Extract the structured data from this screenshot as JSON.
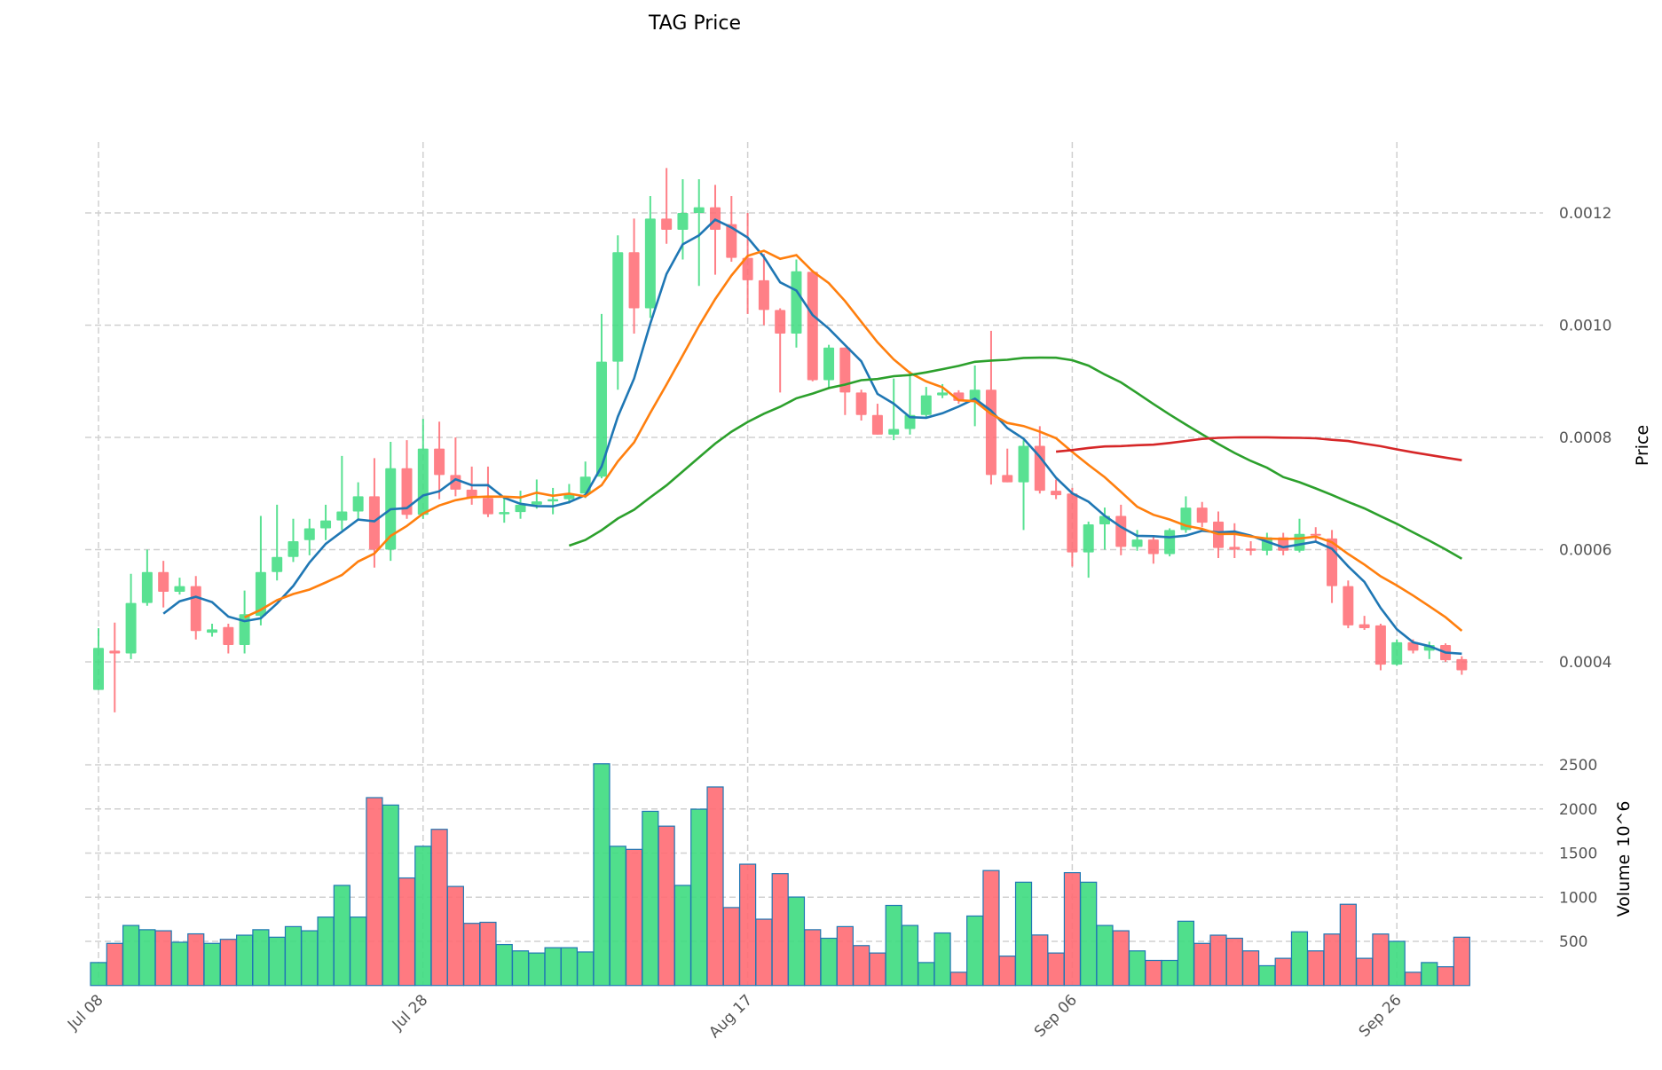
{
  "chart_data": {
    "type": "candlestick",
    "title": "TAG Price",
    "start_date": "2024-07-08",
    "price": {
      "ylabel": "Price",
      "ylim": [
        0.00026,
        0.001327
      ],
      "yticks": [
        0.0004,
        0.0006,
        0.0008,
        0.001,
        0.0012
      ],
      "ytick_labels": [
        "0.0004",
        "0.0006",
        "0.0008",
        "0.0010",
        "0.0012"
      ]
    },
    "volume": {
      "ylabel": "Volume",
      "yunit": "10^6",
      "ylim": [
        0,
        2620
      ],
      "yticks": [
        500,
        1000,
        1500,
        2000,
        2500
      ],
      "ytick_labels": [
        "500",
        "1000",
        "1500",
        "2000",
        "2500"
      ]
    },
    "xtick_indices": [
      0,
      20,
      40,
      60,
      80
    ],
    "xtick_labels": [
      "Jul 08",
      "Jul 28",
      "Aug 17",
      "Sep 06",
      "Sep 26"
    ],
    "moving_averages": [
      {
        "window": 5,
        "color": "#1f77b4"
      },
      {
        "window": 10,
        "color": "#ff7f0e"
      },
      {
        "window": 30,
        "color": "#2ca02c"
      },
      {
        "window": 60,
        "color": "#d62728"
      }
    ],
    "up_color": "#3ddc7f",
    "down_color": "#ff6b73",
    "volume_edge_color": "#1f77b4",
    "open": [
      0.00035,
      0.00042,
      0.000415,
      0.000505,
      0.00056,
      0.000525,
      0.000535,
      0.000452,
      0.000462,
      0.00043,
      0.000482,
      0.00056,
      0.000587,
      0.000617,
      0.000638,
      0.000652,
      0.000668,
      0.000695,
      0.0006,
      0.000745,
      0.000662,
      0.00078,
      0.000733,
      0.000707,
      0.000692,
      0.000663,
      0.000667,
      0.00068,
      0.000686,
      0.00069,
      0.0007,
      0.00073,
      0.000935,
      0.00113,
      0.00103,
      0.00119,
      0.00117,
      0.0012,
      0.00121,
      0.00118,
      0.00112,
      0.00108,
      0.001027,
      0.000985,
      0.001095,
      0.000902,
      0.00096,
      0.00088,
      0.00084,
      0.000805,
      0.000815,
      0.00084,
      0.000875,
      0.00088,
      0.000865,
      0.000885,
      0.000733,
      0.00072,
      0.000785,
      0.000705,
      0.0007,
      0.000595,
      0.000645,
      0.00066,
      0.000605,
      0.000618,
      0.000592,
      0.000635,
      0.000675,
      0.00065,
      0.000605,
      0.000602,
      0.000598,
      0.000622,
      0.000598,
      0.000628,
      0.00062,
      0.000535,
      0.000467,
      0.000465,
      0.000395,
      0.000435,
      0.00042,
      0.00043,
      0.000405
    ],
    "high": [
      0.00046,
      0.00047,
      0.000557,
      0.0006,
      0.00058,
      0.00055,
      0.000553,
      0.000468,
      0.000468,
      0.000527,
      0.00066,
      0.00068,
      0.000655,
      0.000655,
      0.00068,
      0.000767,
      0.00072,
      0.000763,
      0.000792,
      0.000795,
      0.000833,
      0.000828,
      0.0008,
      0.000748,
      0.000748,
      0.000692,
      0.000705,
      0.000725,
      0.00071,
      0.000717,
      0.000757,
      0.00102,
      0.00116,
      0.00119,
      0.00123,
      0.00128,
      0.00126,
      0.00126,
      0.00125,
      0.00123,
      0.0012,
      0.001127,
      0.00103,
      0.001117,
      0.001098,
      0.000965,
      0.00096,
      0.000885,
      0.00086,
      0.000905,
      0.000918,
      0.00089,
      0.000895,
      0.000884,
      0.000928,
      0.00099,
      0.00078,
      0.000795,
      0.00082,
      0.000725,
      0.00071,
      0.00065,
      0.000675,
      0.00068,
      0.000635,
      0.000623,
      0.000638,
      0.000695,
      0.000685,
      0.000668,
      0.000647,
      0.000615,
      0.00063,
      0.00063,
      0.000655,
      0.00064,
      0.000635,
      0.000545,
      0.000482,
      0.000468,
      0.00044,
      0.00044,
      0.000436,
      0.000433,
      0.00041
    ],
    "low": [
      0.00035,
      0.00031,
      0.000405,
      0.0005,
      0.000497,
      0.00052,
      0.00044,
      0.000445,
      0.000415,
      0.000415,
      0.000465,
      0.000545,
      0.000578,
      0.00059,
      0.000617,
      0.000635,
      0.000653,
      0.000568,
      0.00058,
      0.000655,
      0.000655,
      0.00069,
      0.000695,
      0.00068,
      0.000658,
      0.000648,
      0.000655,
      0.000673,
      0.000663,
      0.000682,
      0.000692,
      0.000727,
      0.000885,
      0.000985,
      0.001013,
      0.001145,
      0.001117,
      0.00107,
      0.00109,
      0.001113,
      0.00102,
      0.001,
      0.00088,
      0.00096,
      0.0009,
      0.000886,
      0.00084,
      0.00083,
      0.000805,
      0.000795,
      0.000805,
      0.000835,
      0.00087,
      0.00086,
      0.00082,
      0.000716,
      0.00072,
      0.000635,
      0.0007,
      0.00069,
      0.00057,
      0.00055,
      0.0006,
      0.00059,
      0.000598,
      0.000575,
      0.000588,
      0.00063,
      0.00064,
      0.000585,
      0.000585,
      0.00059,
      0.00059,
      0.00059,
      0.000595,
      0.000615,
      0.000505,
      0.00046,
      0.000457,
      0.000385,
      0.000393,
      0.000415,
      0.000405,
      0.0004,
      0.000377
    ],
    "close": [
      0.000425,
      0.000415,
      0.000505,
      0.00056,
      0.000525,
      0.000535,
      0.000455,
      0.000458,
      0.00043,
      0.000485,
      0.00056,
      0.000587,
      0.000615,
      0.000638,
      0.000652,
      0.000668,
      0.000695,
      0.0006,
      0.000745,
      0.000662,
      0.00078,
      0.000733,
      0.000707,
      0.000692,
      0.000663,
      0.000667,
      0.00068,
      0.000686,
      0.00069,
      0.0007,
      0.00073,
      0.000935,
      0.00113,
      0.00103,
      0.00119,
      0.00117,
      0.0012,
      0.00121,
      0.00117,
      0.00112,
      0.00108,
      0.001027,
      0.000985,
      0.001096,
      0.000902,
      0.00096,
      0.00088,
      0.00084,
      0.000805,
      0.000815,
      0.00084,
      0.000875,
      0.00088,
      0.000865,
      0.000885,
      0.000733,
      0.00072,
      0.000785,
      0.000705,
      0.000697,
      0.000595,
      0.000645,
      0.00066,
      0.000605,
      0.000618,
      0.000592,
      0.000635,
      0.000675,
      0.000648,
      0.000603,
      0.0006,
      0.000598,
      0.000622,
      0.000598,
      0.000628,
      0.000625,
      0.000535,
      0.000465,
      0.00046,
      0.000395,
      0.000435,
      0.00042,
      0.00043,
      0.000403,
      0.000385
    ],
    "volume_values": [
      260,
      477,
      680,
      632,
      620,
      490,
      585,
      477,
      523,
      570,
      632,
      547,
      667,
      620,
      775,
      1134,
      775,
      2128,
      2044,
      1218,
      1577,
      1769,
      1122,
      704,
      716,
      464,
      392,
      368,
      428,
      428,
      380,
      2512,
      1577,
      1542,
      1973,
      1805,
      1134,
      1997,
      2249,
      883,
      1374,
      751,
      1267,
      1002,
      632,
      535,
      667,
      452,
      368,
      907,
      680,
      260,
      595,
      150,
      787,
      1302,
      333,
      1170,
      572,
      368,
      1278,
      1170,
      680,
      620,
      392,
      284,
      284,
      728,
      477,
      570,
      535,
      392,
      224,
      308,
      608,
      392,
      583,
      920,
      308,
      583,
      500,
      150,
      260,
      212,
      547
    ]
  }
}
